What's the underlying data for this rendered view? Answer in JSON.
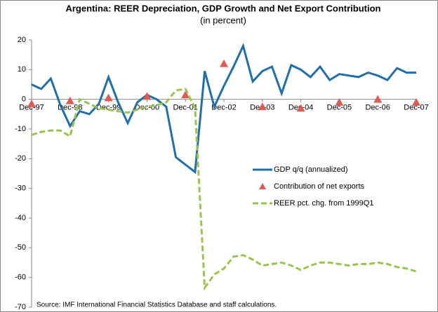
{
  "chart_data": {
    "type": "line",
    "title": "Argentina: REER Depreciation, GDP Growth and Net Export Contribution",
    "subtitle": "(in percent)",
    "source": "Source: IMF International Financial Statistics Database and staff calculations.",
    "categories": [
      "Dec-97",
      null,
      null,
      null,
      "Dec-98",
      null,
      null,
      null,
      "Dec-99",
      null,
      null,
      null,
      "Dec-00",
      null,
      null,
      null,
      "Dec-01",
      null,
      null,
      null,
      "Dec-02",
      null,
      null,
      null,
      "Dec-03",
      null,
      null,
      null,
      "Dec-04",
      null,
      null,
      null,
      "Dec-05",
      null,
      null,
      null,
      "Dec-06",
      null,
      null,
      null,
      "Dec-07"
    ],
    "series": [
      {
        "name": "GDP q/q (annualized)",
        "color": "#1f6fae",
        "style": "line",
        "values": [
          5,
          3.5,
          7,
          -2,
          -9,
          -4,
          -5,
          -1.5,
          7.5,
          -1,
          -8,
          -1,
          1.5,
          0,
          -2.5,
          -19.5,
          -22,
          -24.5,
          9.5,
          -2.5,
          4.5,
          11,
          18,
          6,
          9.5,
          11,
          2,
          11.5,
          10,
          7.5,
          11,
          6.5,
          8.5,
          8,
          7.5,
          9,
          8,
          6.5,
          10.5,
          9,
          9
        ]
      },
      {
        "name": "Contribution of net exports",
        "color": "#e05a55",
        "style": "marker",
        "values": [
          -1.5,
          null,
          null,
          null,
          -0.5,
          null,
          null,
          null,
          0.5,
          null,
          null,
          null,
          1,
          null,
          null,
          null,
          1.5,
          null,
          null,
          null,
          12,
          null,
          null,
          null,
          -2.5,
          null,
          null,
          null,
          -3,
          null,
          null,
          null,
          -1,
          null,
          null,
          null,
          0,
          null,
          null,
          null,
          -1
        ]
      },
      {
        "name": "REER pct. chg. from 1999Q1",
        "color": "#9bc34f",
        "style": "dashed",
        "values": [
          -12,
          -11,
          -10.5,
          -10.5,
          -12.5,
          0,
          -1.5,
          -3,
          -3.5,
          -4,
          -4.5,
          -3.5,
          -2.5,
          -2,
          -1,
          3,
          3.5,
          -3,
          -63.5,
          -59,
          -57,
          -53,
          -52.5,
          -54,
          -56,
          -55.5,
          -55,
          -56,
          -57.5,
          -56,
          -55,
          -55,
          -55.5,
          -56,
          -55.5,
          -55.5,
          -55,
          -55.5,
          -56.5,
          -57,
          -58
        ]
      }
    ],
    "ylim": [
      -70,
      20
    ],
    "yticks": [
      20,
      10,
      0,
      -10,
      -20,
      -30,
      -40,
      -50,
      -60,
      -70
    ],
    "grid": false,
    "legend": "right"
  }
}
